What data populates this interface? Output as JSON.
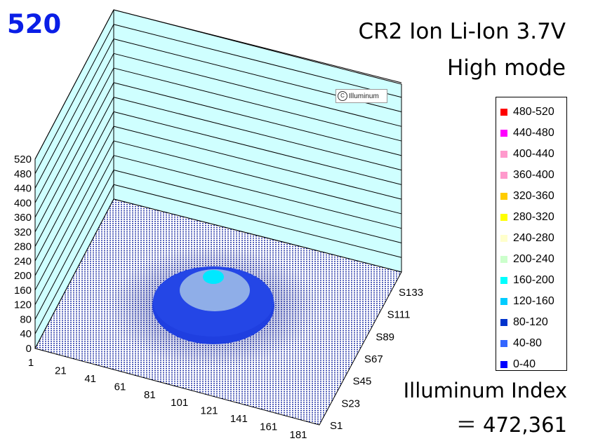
{
  "peak_value": "520",
  "title_line1": "CR2 Ion Li-Ion 3.7V",
  "title_line2": "High mode",
  "watermark": "Illuminum",
  "index_line1": "Illuminum Index",
  "index_line2": "＝ 472,361",
  "colors": {
    "wall": "#cfffff",
    "floor_dot": "#1a2aa6",
    "outer_ring": "#1f3fe0",
    "mid_ring": "#8faee8",
    "center": "#00e8ff"
  },
  "chart_data": {
    "type": "3d-surface",
    "title": "CR2 Ion Li-Ion 3.7V High mode",
    "z_ticks": [
      "0",
      "40",
      "80",
      "120",
      "160",
      "200",
      "240",
      "280",
      "320",
      "360",
      "400",
      "440",
      "480",
      "520"
    ],
    "x_ticks": [
      "1",
      "21",
      "41",
      "61",
      "81",
      "101",
      "121",
      "141",
      "161",
      "181"
    ],
    "y_ticks": [
      "S1",
      "S23",
      "S45",
      "S67",
      "S89",
      "S111",
      "S133"
    ],
    "zlim": [
      0,
      520
    ],
    "peak": 520,
    "grid": true,
    "legend_position": "right",
    "legend": [
      {
        "label": "480-520",
        "color": "#ff0000"
      },
      {
        "label": "440-480",
        "color": "#ff00ff"
      },
      {
        "label": "400-440",
        "color": "#ff99cc"
      },
      {
        "label": "360-400",
        "color": "#ff99cc"
      },
      {
        "label": "320-360",
        "color": "#ffcc00"
      },
      {
        "label": "280-320",
        "color": "#ffff00"
      },
      {
        "label": "240-280",
        "color": "#ffffcc"
      },
      {
        "label": "200-240",
        "color": "#ccffcc"
      },
      {
        "label": "160-200",
        "color": "#00ffff"
      },
      {
        "label": "120-160",
        "color": "#00ccff"
      },
      {
        "label": "80-120",
        "color": "#0033cc"
      },
      {
        "label": "40-80",
        "color": "#3366ff"
      },
      {
        "label": "0-40",
        "color": "#0000ff"
      }
    ]
  }
}
